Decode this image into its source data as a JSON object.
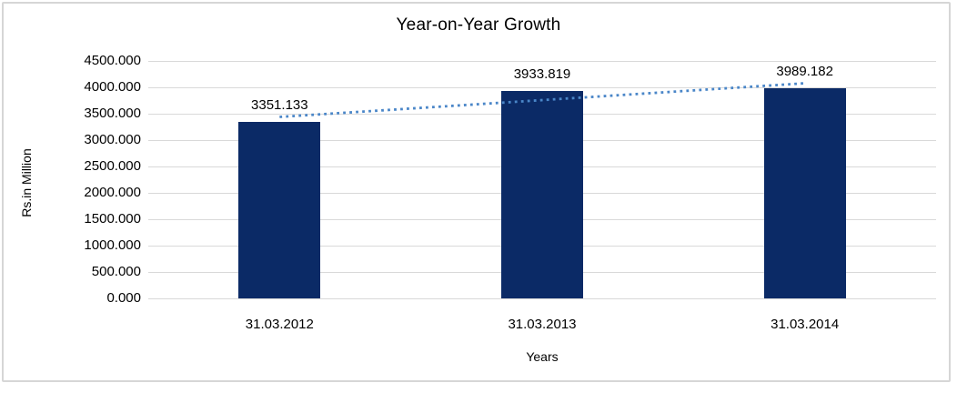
{
  "chart_data": {
    "type": "bar",
    "title": "Year-on-Year Growth",
    "xlabel": "Years",
    "ylabel": "Rs.in Million",
    "categories": [
      "31.03.2012",
      "31.03.2013",
      "31.03.2014"
    ],
    "values": [
      3351.133,
      3933.819,
      3989.182
    ],
    "data_labels": [
      "3351.133",
      "3933.819",
      "3989.182"
    ],
    "ylim": [
      0,
      4500
    ],
    "ytick_step": 500,
    "ytick_labels": [
      "0.000",
      "500.000",
      "1000.000",
      "1500.000",
      "2000.000",
      "2500.000",
      "3000.000",
      "3500.000",
      "4000.000",
      "4500.000"
    ],
    "grid": true,
    "legend": "none",
    "trendline": {
      "type": "linear",
      "style": "dotted"
    },
    "colors": {
      "bar": "#0b2a66",
      "trendline": "#4a86c8",
      "gridline": "#d9d9d9",
      "text": "#000000",
      "frame_border": "#d6d6d6",
      "background": "#ffffff"
    }
  }
}
